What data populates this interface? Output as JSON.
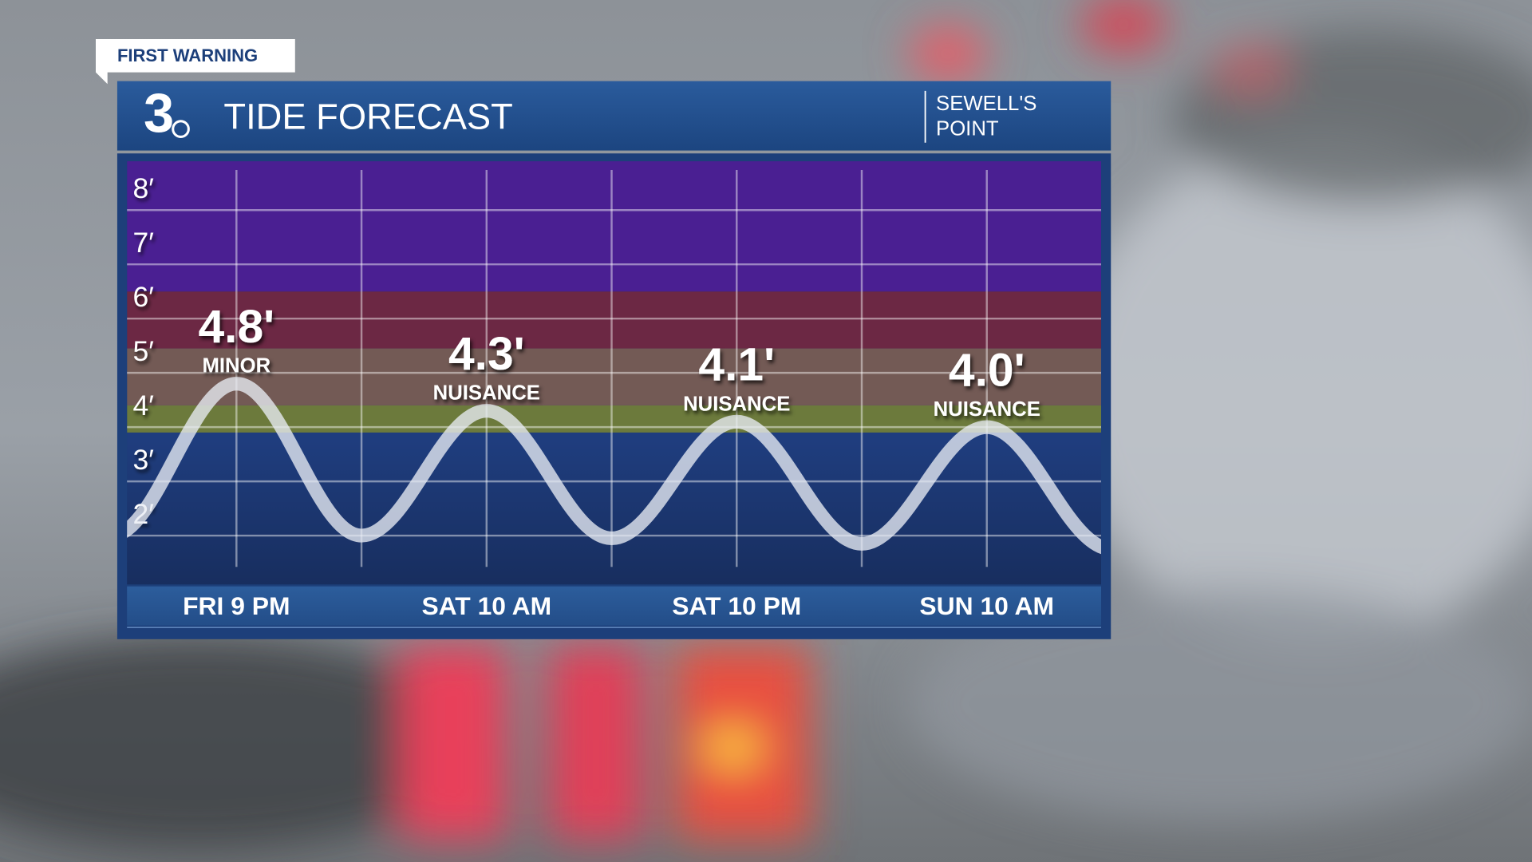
{
  "badge": "FIRST WARNING",
  "logo": "3",
  "location": [
    "SEWELL'S",
    "POINT"
  ],
  "chart_data": {
    "type": "line",
    "title": "TIDE FORECAST",
    "categories": [
      null,
      "FRI 9 PM",
      null,
      "SAT 10 AM",
      null,
      "SAT 10 PM",
      null,
      "SUN 10 AM",
      null
    ],
    "values": [
      2.0,
      4.8,
      2.0,
      4.3,
      1.95,
      4.1,
      1.85,
      4.0,
      1.75
    ],
    "value_labels": [
      null,
      "4.8'",
      null,
      "4.3'",
      null,
      "4.1'",
      null,
      "4.0'",
      null
    ],
    "levels": [
      null,
      "MINOR",
      null,
      "NUISANCE",
      null,
      "NUISANCE",
      null,
      "NUISANCE",
      null
    ],
    "color": "#e8ecf4",
    "ylim": [
      1.1,
      8.9
    ],
    "yticks": [
      {
        "value": 2,
        "label": "2′"
      },
      {
        "value": 3,
        "label": "3′"
      },
      {
        "value": 4,
        "label": "4′"
      },
      {
        "value": 5,
        "label": "5′"
      },
      {
        "value": 6,
        "label": "6′"
      },
      {
        "value": 7,
        "label": "7′"
      },
      {
        "value": 8,
        "label": "8′"
      }
    ],
    "grid": true,
    "bands": [
      {
        "from": 1.1,
        "to": 3.9,
        "color": "#1f3d7e"
      },
      {
        "from": 3.9,
        "to": 4.4,
        "color": "#6c7a3c"
      },
      {
        "from": 4.4,
        "to": 5.45,
        "color": "#735a55"
      },
      {
        "from": 5.45,
        "to": 6.5,
        "color": "#6c2844"
      },
      {
        "from": 6.5,
        "to": 8.9,
        "color": "#4a1f92"
      }
    ]
  }
}
